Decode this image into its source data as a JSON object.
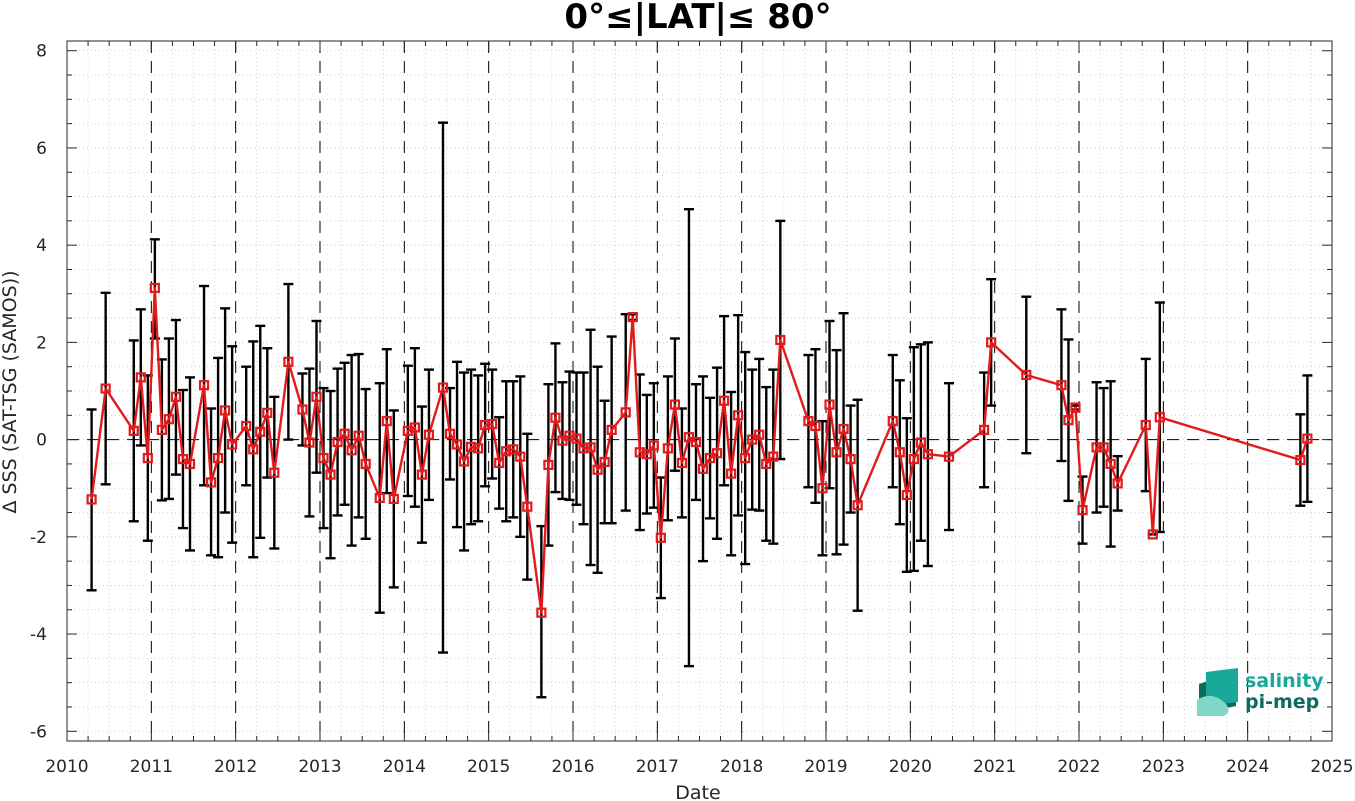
{
  "chart_data": {
    "type": "line",
    "title": "0°≤|LAT|≤ 80°",
    "xlabel": "Date",
    "ylabel": "Δ SSS (SAT-TSG (SAMOS))",
    "xlim": [
      2010,
      2025
    ],
    "ylim": [
      -6.2,
      8.2
    ],
    "x_ticks": [
      "2010",
      "2011",
      "2012",
      "2013",
      "2014",
      "2015",
      "2016",
      "2017",
      "2018",
      "2019",
      "2020",
      "2021",
      "2022",
      "2023",
      "2024",
      "2025"
    ],
    "y_ticks": [
      "-6",
      "-4",
      "-2",
      "0",
      "2",
      "4",
      "6",
      "8"
    ],
    "year_dividers": [
      2011,
      2012,
      2013,
      2014,
      2015,
      2016,
      2017,
      2018,
      2019,
      2020,
      2021,
      2022,
      2023,
      2024
    ],
    "grid": "minor dotted",
    "zero_line": "dashed",
    "series": [
      {
        "color": "#e31a1c",
        "errorbar_color": "#000000",
        "marker": "square",
        "points": [
          {
            "x": "2010-04",
            "y": -1.23,
            "lo": -3.1,
            "hi": 0.62
          },
          {
            "x": "2010-06",
            "y": 1.05,
            "lo": -0.92,
            "hi": 3.02
          },
          {
            "x": "2010-10",
            "y": 0.18,
            "lo": -1.68,
            "hi": 2.04
          },
          {
            "x": "2010-11",
            "y": 1.28,
            "lo": -0.12,
            "hi": 2.68
          },
          {
            "x": "2010-12",
            "y": -0.38,
            "lo": -2.08,
            "hi": 1.32
          },
          {
            "x": "2011-01",
            "y": 3.12,
            "lo": 2.08,
            "hi": 4.12
          },
          {
            "x": "2011-02",
            "y": 0.2,
            "lo": -1.25,
            "hi": 1.65
          },
          {
            "x": "2011-03",
            "y": 0.42,
            "lo": -1.22,
            "hi": 2.08
          },
          {
            "x": "2011-04",
            "y": 0.88,
            "lo": -0.72,
            "hi": 2.46
          },
          {
            "x": "2011-05",
            "y": -0.4,
            "lo": -1.82,
            "hi": 1.02
          },
          {
            "x": "2011-06",
            "y": -0.5,
            "lo": -2.28,
            "hi": 1.28
          },
          {
            "x": "2011-08",
            "y": 1.12,
            "lo": -0.94,
            "hi": 3.16
          },
          {
            "x": "2011-09",
            "y": -0.88,
            "lo": -2.38,
            "hi": 0.64
          },
          {
            "x": "2011-10",
            "y": -0.38,
            "lo": -2.42,
            "hi": 1.68
          },
          {
            "x": "2011-11",
            "y": 0.6,
            "lo": -1.5,
            "hi": 2.7
          },
          {
            "x": "2011-12",
            "y": -0.1,
            "lo": -2.12,
            "hi": 1.92
          },
          {
            "x": "2012-02",
            "y": 0.28,
            "lo": -0.94,
            "hi": 1.5
          },
          {
            "x": "2012-03",
            "y": -0.2,
            "lo": -2.42,
            "hi": 2.02
          },
          {
            "x": "2012-04",
            "y": 0.16,
            "lo": -2.02,
            "hi": 2.34
          },
          {
            "x": "2012-05",
            "y": 0.55,
            "lo": -0.78,
            "hi": 1.88
          },
          {
            "x": "2012-06",
            "y": -0.68,
            "lo": -2.24,
            "hi": 0.88
          },
          {
            "x": "2012-08",
            "y": 1.6,
            "lo": 0.0,
            "hi": 3.2
          },
          {
            "x": "2012-10",
            "y": 0.62,
            "lo": -0.12,
            "hi": 1.36
          },
          {
            "x": "2012-11",
            "y": -0.06,
            "lo": -1.58,
            "hi": 1.46
          },
          {
            "x": "2012-12",
            "y": 0.88,
            "lo": -0.68,
            "hi": 2.44
          },
          {
            "x": "2013-01",
            "y": -0.38,
            "lo": -1.82,
            "hi": 1.06
          },
          {
            "x": "2013-02",
            "y": -0.72,
            "lo": -2.44,
            "hi": 1.0
          },
          {
            "x": "2013-03",
            "y": -0.05,
            "lo": -1.56,
            "hi": 1.46
          },
          {
            "x": "2013-04",
            "y": 0.12,
            "lo": -1.34,
            "hi": 1.58
          },
          {
            "x": "2013-05",
            "y": -0.22,
            "lo": -2.18,
            "hi": 1.74
          },
          {
            "x": "2013-06",
            "y": 0.08,
            "lo": -1.6,
            "hi": 1.76
          },
          {
            "x": "2013-07",
            "y": -0.5,
            "lo": -2.04,
            "hi": 1.04
          },
          {
            "x": "2013-09",
            "y": -1.2,
            "lo": -3.56,
            "hi": 1.16
          },
          {
            "x": "2013-10",
            "y": 0.38,
            "lo": -1.1,
            "hi": 1.86
          },
          {
            "x": "2013-11",
            "y": -1.22,
            "lo": -3.04,
            "hi": 0.6
          },
          {
            "x": "2014-01",
            "y": 0.18,
            "lo": -1.16,
            "hi": 1.52
          },
          {
            "x": "2014-02",
            "y": 0.25,
            "lo": -1.38,
            "hi": 1.88
          },
          {
            "x": "2014-03",
            "y": -0.72,
            "lo": -2.12,
            "hi": 0.68
          },
          {
            "x": "2014-04",
            "y": 0.1,
            "lo": -1.24,
            "hi": 1.44
          },
          {
            "x": "2014-06",
            "y": 1.07,
            "lo": -4.38,
            "hi": 6.52
          },
          {
            "x": "2014-07",
            "y": 0.12,
            "lo": -0.82,
            "hi": 1.06
          },
          {
            "x": "2014-08",
            "y": -0.1,
            "lo": -1.8,
            "hi": 1.6
          },
          {
            "x": "2014-09",
            "y": -0.45,
            "lo": -2.28,
            "hi": 1.38
          },
          {
            "x": "2014-10",
            "y": -0.15,
            "lo": -1.74,
            "hi": 1.44
          },
          {
            "x": "2014-11",
            "y": -0.18,
            "lo": -1.68,
            "hi": 1.32
          },
          {
            "x": "2014-12",
            "y": 0.3,
            "lo": -0.96,
            "hi": 1.56
          },
          {
            "x": "2015-01",
            "y": 0.32,
            "lo": -0.8,
            "hi": 1.44
          },
          {
            "x": "2015-02",
            "y": -0.48,
            "lo": -1.42,
            "hi": 0.46
          },
          {
            "x": "2015-03",
            "y": -0.24,
            "lo": -1.68,
            "hi": 1.2
          },
          {
            "x": "2015-04",
            "y": -0.2,
            "lo": -1.6,
            "hi": 1.2
          },
          {
            "x": "2015-05",
            "y": -0.35,
            "lo": -2.0,
            "hi": 1.3
          },
          {
            "x": "2015-06",
            "y": -1.38,
            "lo": -2.88,
            "hi": 0.12
          },
          {
            "x": "2015-08",
            "y": -3.56,
            "lo": -5.3,
            "hi": -1.78
          },
          {
            "x": "2015-09",
            "y": -0.52,
            "lo": -2.18,
            "hi": 1.14
          },
          {
            "x": "2015-10",
            "y": 0.45,
            "lo": -1.08,
            "hi": 1.98
          },
          {
            "x": "2015-11",
            "y": -0.02,
            "lo": -1.22,
            "hi": 1.18
          },
          {
            "x": "2015-12",
            "y": 0.08,
            "lo": -1.24,
            "hi": 1.4
          },
          {
            "x": "2016-01",
            "y": 0.02,
            "lo": -1.34,
            "hi": 1.38
          },
          {
            "x": "2016-02",
            "y": -0.18,
            "lo": -1.74,
            "hi": 1.38
          },
          {
            "x": "2016-03",
            "y": -0.16,
            "lo": -2.58,
            "hi": 2.26
          },
          {
            "x": "2016-04",
            "y": -0.62,
            "lo": -2.74,
            "hi": 1.5
          },
          {
            "x": "2016-05",
            "y": -0.46,
            "lo": -1.72,
            "hi": 0.8
          },
          {
            "x": "2016-06",
            "y": 0.2,
            "lo": -1.72,
            "hi": 2.12
          },
          {
            "x": "2016-08",
            "y": 0.56,
            "lo": -1.46,
            "hi": 2.58
          },
          {
            "x": "2016-09",
            "y": 2.52,
            "lo": 2.46,
            "hi": 2.58
          },
          {
            "x": "2016-10",
            "y": -0.26,
            "lo": -1.86,
            "hi": 1.34
          },
          {
            "x": "2016-11",
            "y": -0.3,
            "lo": -1.52,
            "hi": 0.92
          },
          {
            "x": "2016-12",
            "y": -0.12,
            "lo": -1.4,
            "hi": 1.16
          },
          {
            "x": "2017-01",
            "y": -2.02,
            "lo": -3.26,
            "hi": -0.78
          },
          {
            "x": "2017-02",
            "y": -0.18,
            "lo": -1.66,
            "hi": 1.3
          },
          {
            "x": "2017-03",
            "y": 0.72,
            "lo": -0.64,
            "hi": 2.08
          },
          {
            "x": "2017-04",
            "y": -0.48,
            "lo": -1.6,
            "hi": 0.64
          },
          {
            "x": "2017-05",
            "y": 0.05,
            "lo": -4.66,
            "hi": 4.74
          },
          {
            "x": "2017-06",
            "y": -0.05,
            "lo": -1.24,
            "hi": 1.14
          },
          {
            "x": "2017-07",
            "y": -0.6,
            "lo": -2.5,
            "hi": 1.3
          },
          {
            "x": "2017-08",
            "y": -0.38,
            "lo": -1.62,
            "hi": 0.86
          },
          {
            "x": "2017-09",
            "y": -0.28,
            "lo": -2.04,
            "hi": 1.48
          },
          {
            "x": "2017-10",
            "y": 0.8,
            "lo": -0.94,
            "hi": 2.54
          },
          {
            "x": "2017-11",
            "y": -0.7,
            "lo": -2.38,
            "hi": 0.98
          },
          {
            "x": "2017-12",
            "y": 0.5,
            "lo": -1.56,
            "hi": 2.56
          },
          {
            "x": "2018-01",
            "y": -0.38,
            "lo": -2.56,
            "hi": 1.8
          },
          {
            "x": "2018-02",
            "y": 0.0,
            "lo": -1.44,
            "hi": 1.44
          },
          {
            "x": "2018-03",
            "y": 0.1,
            "lo": -1.46,
            "hi": 1.66
          },
          {
            "x": "2018-04",
            "y": -0.5,
            "lo": -2.08,
            "hi": 1.08
          },
          {
            "x": "2018-05",
            "y": -0.35,
            "lo": -2.14,
            "hi": 1.44
          },
          {
            "x": "2018-06",
            "y": 2.05,
            "lo": -0.4,
            "hi": 4.5
          },
          {
            "x": "2018-10",
            "y": 0.38,
            "lo": -0.98,
            "hi": 1.74
          },
          {
            "x": "2018-11",
            "y": 0.28,
            "lo": -1.3,
            "hi": 1.86
          },
          {
            "x": "2018-12",
            "y": -1.0,
            "lo": -2.38,
            "hi": 0.38
          },
          {
            "x": "2019-01",
            "y": 0.72,
            "lo": -1.0,
            "hi": 2.44
          },
          {
            "x": "2019-02",
            "y": -0.26,
            "lo": -2.36,
            "hi": 1.84
          },
          {
            "x": "2019-03",
            "y": 0.22,
            "lo": -2.16,
            "hi": 2.6
          },
          {
            "x": "2019-04",
            "y": -0.4,
            "lo": -1.5,
            "hi": 0.7
          },
          {
            "x": "2019-05",
            "y": -1.35,
            "lo": -3.52,
            "hi": 0.82
          },
          {
            "x": "2019-10",
            "y": 0.38,
            "lo": -0.98,
            "hi": 1.74
          },
          {
            "x": "2019-11",
            "y": -0.26,
            "lo": -1.74,
            "hi": 1.22
          },
          {
            "x": "2019-12",
            "y": -1.14,
            "lo": -2.72,
            "hi": 0.44
          },
          {
            "x": "2020-01",
            "y": -0.4,
            "lo": -2.7,
            "hi": 1.9
          },
          {
            "x": "2020-02",
            "y": -0.06,
            "lo": -2.08,
            "hi": 1.96
          },
          {
            "x": "2020-03",
            "y": -0.3,
            "lo": -2.6,
            "hi": 2.0
          },
          {
            "x": "2020-06",
            "y": -0.35,
            "lo": -1.86,
            "hi": 1.16
          },
          {
            "x": "2020-11",
            "y": 0.2,
            "lo": -0.98,
            "hi": 1.38
          },
          {
            "x": "2020-12",
            "y": 2.0,
            "lo": 0.7,
            "hi": 3.3
          },
          {
            "x": "2021-05",
            "y": 1.33,
            "lo": -0.28,
            "hi": 2.94
          },
          {
            "x": "2021-10",
            "y": 1.12,
            "lo": -0.44,
            "hi": 2.68
          },
          {
            "x": "2021-11",
            "y": 0.4,
            "lo": -1.26,
            "hi": 2.06
          },
          {
            "x": "2021-12",
            "y": 0.66,
            "lo": 0.62,
            "hi": 0.7
          },
          {
            "x": "2022-01",
            "y": -1.45,
            "lo": -2.14,
            "hi": -0.76
          },
          {
            "x": "2022-03",
            "y": -0.16,
            "lo": -1.5,
            "hi": 1.18
          },
          {
            "x": "2022-04",
            "y": -0.16,
            "lo": -1.38,
            "hi": 1.06
          },
          {
            "x": "2022-05",
            "y": -0.5,
            "lo": -2.2,
            "hi": 1.2
          },
          {
            "x": "2022-06",
            "y": -0.9,
            "lo": -1.46,
            "hi": -0.34
          },
          {
            "x": "2022-10",
            "y": 0.3,
            "lo": -1.06,
            "hi": 1.66
          },
          {
            "x": "2022-11",
            "y": -1.95,
            "lo": -1.95,
            "hi": -1.95
          },
          {
            "x": "2022-12",
            "y": 0.46,
            "lo": -1.9,
            "hi": 2.82
          },
          {
            "x": "2024-08",
            "y": -0.42,
            "lo": -1.36,
            "hi": 0.52
          },
          {
            "x": "2024-09",
            "y": 0.02,
            "lo": -1.28,
            "hi": 1.32
          }
        ]
      }
    ]
  },
  "logo": {
    "line1": "salinity",
    "line2": "pi-mep",
    "colors": [
      "#1aa89b",
      "#0d6b5e",
      "#7fd8c8"
    ]
  }
}
